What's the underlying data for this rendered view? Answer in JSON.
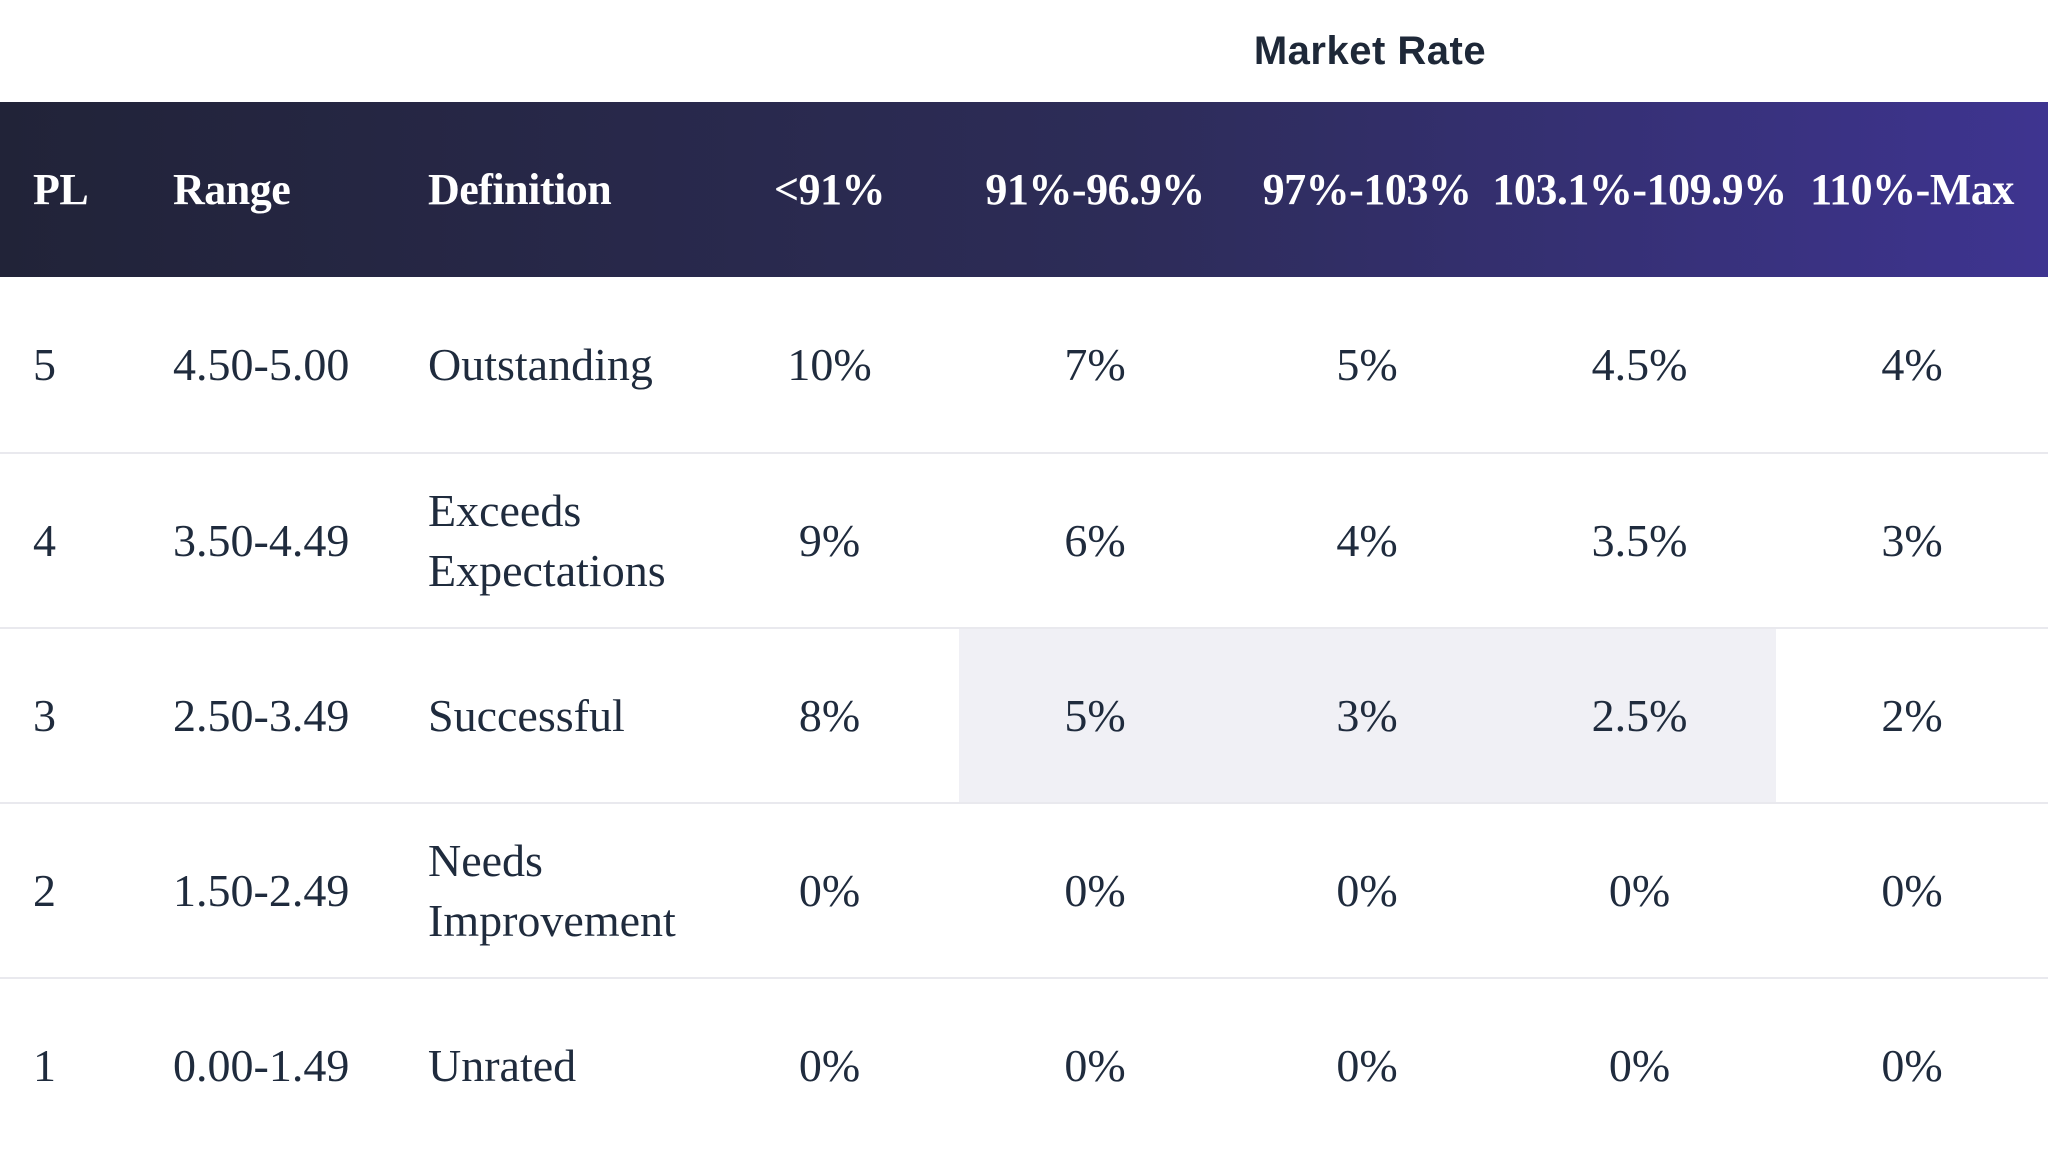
{
  "title": "Market Rate",
  "chart_data": {
    "type": "table",
    "title": "Market Rate",
    "columns": [
      "PL",
      "Range",
      "Definition",
      "<91%",
      "91%-96.9%",
      "97%-103%",
      "103.1%-109.9%",
      "110%-Max"
    ],
    "rows": [
      [
        "5",
        "4.50-5.00",
        "Outstanding",
        "10%",
        "7%",
        "5%",
        "4.5%",
        "4%"
      ],
      [
        "4",
        "3.50-4.49",
        "Exceeds Expectations",
        "9%",
        "6%",
        "4%",
        "3.5%",
        "3%"
      ],
      [
        "3",
        "2.50-3.49",
        "Successful",
        "8%",
        "5%",
        "3%",
        "2.5%",
        "2%"
      ],
      [
        "2",
        "1.50-2.49",
        "Needs Improvement",
        "0%",
        "0%",
        "0%",
        "0%",
        "0%"
      ],
      [
        "1",
        "0.00-1.49",
        "Unrated",
        "0%",
        "0%",
        "0%",
        "0%",
        "0%"
      ]
    ],
    "highlighted_cells": [
      {
        "row_pl": "3",
        "columns": [
          "91%-96.9%",
          "97%-103%",
          "103.1%-109.9%"
        ]
      }
    ],
    "layout_hints": {
      "title_position": "centered above market-rate columns",
      "header_style": "gradient dark-navy to purple, white bold serif",
      "grid": "horizontal dividers only, no vertical lines"
    }
  },
  "colors": {
    "header_gradient_start": "#212338",
    "header_gradient_end": "#3e3490",
    "header_text": "#ffffff",
    "body_text": "#1f2b3d",
    "title_text": "#1e2838",
    "highlight_cell": "#f0f0f5",
    "row_divider": "#e9e9ee",
    "background": "#ffffff"
  }
}
